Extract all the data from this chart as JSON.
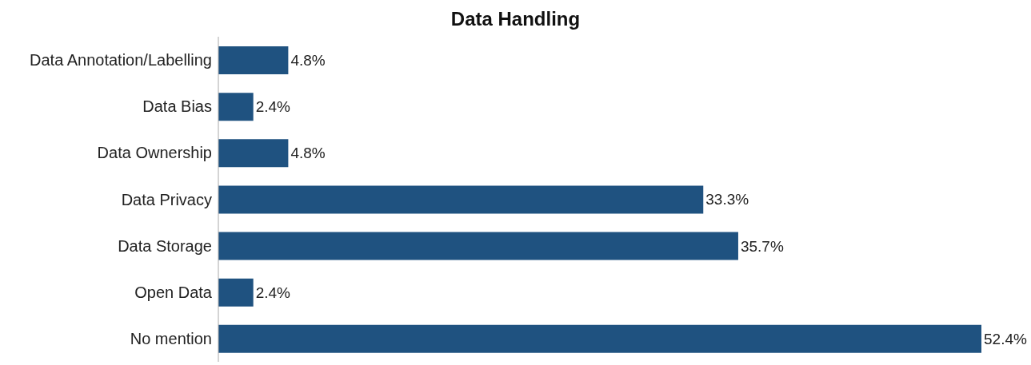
{
  "chart_data": {
    "type": "bar",
    "orientation": "horizontal",
    "title": "Data Handling",
    "categories": [
      "Data Annotation/Labelling",
      "Data Bias",
      "Data Ownership",
      "Data Privacy",
      "Data Storage",
      "Open Data",
      "No mention"
    ],
    "values": [
      4.8,
      2.4,
      4.8,
      33.3,
      35.7,
      2.4,
      52.4
    ],
    "value_labels": [
      "4.8%",
      "2.4%",
      "4.8%",
      "33.3%",
      "35.7%",
      "2.4%",
      "52.4%"
    ],
    "color": "#1f5280",
    "tick_labels": "y",
    "data_labels": true
  }
}
